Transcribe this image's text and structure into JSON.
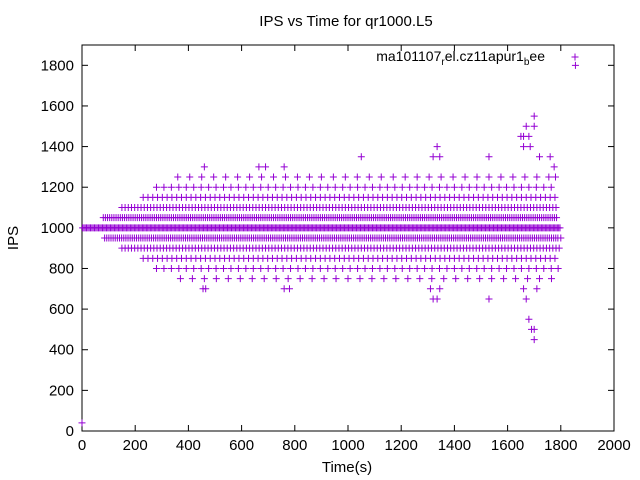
{
  "chart_data": {
    "type": "scatter",
    "title": "IPS vs Time for qr1000.L5",
    "xlabel": "Time(s)",
    "ylabel": "IPS",
    "xlim": [
      0,
      2000
    ],
    "ylim": [
      0,
      1900
    ],
    "x_ticks": [
      0,
      200,
      400,
      600,
      800,
      1000,
      1200,
      1400,
      1600,
      1800,
      2000
    ],
    "y_ticks": [
      0,
      200,
      400,
      600,
      800,
      1000,
      1200,
      1400,
      1600,
      1800
    ],
    "grid": false,
    "legend_position": "top-right",
    "marker": "+",
    "color": "#9400d3",
    "series": [
      {
        "name": "ma101107rel.cz11apur1bee",
        "legend_parts": {
          "a": "ma101107",
          "b": "r",
          "c": "el.cz11apur1",
          "d": "b",
          "e": "ee"
        },
        "bands": [
          {
            "y": 1000,
            "x_start": 2,
            "x_end": 1800,
            "step": 5
          },
          {
            "y": 1050,
            "x_start": 80,
            "x_end": 1790,
            "step": 8
          },
          {
            "y": 950,
            "x_start": 85,
            "x_end": 1795,
            "step": 8
          },
          {
            "y": 1100,
            "x_start": 150,
            "x_end": 1790,
            "step": 12
          },
          {
            "y": 900,
            "x_start": 150,
            "x_end": 1795,
            "step": 12
          },
          {
            "y": 1150,
            "x_start": 230,
            "x_end": 1780,
            "step": 18
          },
          {
            "y": 850,
            "x_start": 230,
            "x_end": 1790,
            "step": 18
          },
          {
            "y": 1200,
            "x_start": 280,
            "x_end": 1770,
            "step": 28
          },
          {
            "y": 800,
            "x_start": 280,
            "x_end": 1780,
            "step": 28
          },
          {
            "y": 1250,
            "x_start": 360,
            "x_end": 1760,
            "step": 45
          },
          {
            "y": 750,
            "x_start": 370,
            "x_end": 1770,
            "step": 45
          }
        ],
        "points": [
          [
            0,
            40
          ],
          [
            455,
            700
          ],
          [
            465,
            700
          ],
          [
            460,
            1300
          ],
          [
            665,
            1300
          ],
          [
            690,
            1300
          ],
          [
            760,
            1300
          ],
          [
            760,
            700
          ],
          [
            780,
            700
          ],
          [
            1050,
            1350
          ],
          [
            1320,
            1350
          ],
          [
            1335,
            1400
          ],
          [
            1345,
            1350
          ],
          [
            1310,
            700
          ],
          [
            1320,
            650
          ],
          [
            1335,
            650
          ],
          [
            1345,
            700
          ],
          [
            1530,
            1350
          ],
          [
            1530,
            650
          ],
          [
            1650,
            1450
          ],
          [
            1660,
            1450
          ],
          [
            1670,
            1500
          ],
          [
            1680,
            1450
          ],
          [
            1685,
            1400
          ],
          [
            1660,
            1400
          ],
          [
            1700,
            1550
          ],
          [
            1700,
            1500
          ],
          [
            1660,
            700
          ],
          [
            1670,
            650
          ],
          [
            1680,
            550
          ],
          [
            1690,
            500
          ],
          [
            1700,
            500
          ],
          [
            1700,
            450
          ],
          [
            1710,
            700
          ],
          [
            1720,
            1350
          ],
          [
            1760,
            1350
          ],
          [
            1775,
            1300
          ],
          [
            1780,
            1250
          ],
          [
            1790,
            800
          ],
          [
            1800,
            950
          ],
          [
            1855,
            1800
          ]
        ]
      }
    ]
  }
}
